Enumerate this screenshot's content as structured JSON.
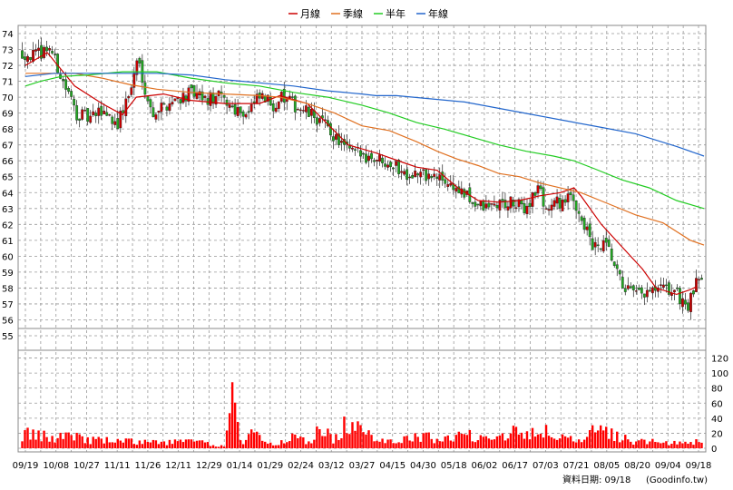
{
  "chart_data": {
    "type": "candlestick",
    "legend": [
      {
        "label": "月線",
        "color": "#cc0000"
      },
      {
        "label": "季線",
        "color": "#e07020"
      },
      {
        "label": "半年",
        "color": "#22cc22"
      },
      {
        "label": "年線",
        "color": "#2266cc"
      }
    ],
    "price_axis": {
      "min": 55,
      "max": 74,
      "ticks": [
        74,
        73,
        72,
        71,
        70,
        69,
        68,
        67,
        66,
        65,
        64,
        63,
        62,
        61,
        60,
        59,
        58,
        57,
        56,
        55
      ]
    },
    "volume_axis": {
      "min": 0,
      "max": 140,
      "ticks": [
        120,
        100,
        80,
        60,
        40,
        20,
        0
      ]
    },
    "x_tick_labels": [
      "09/19",
      "10/08",
      "10/27",
      "11/11",
      "11/26",
      "12/11",
      "12/29",
      "01/14",
      "01/29",
      "02/24",
      "03/12",
      "03/27",
      "04/15",
      "04/30",
      "05/18",
      "06/02",
      "06/17",
      "07/03",
      "07/21",
      "08/05",
      "08/20",
      "09/04",
      "09/18"
    ],
    "up_color": "#cc0000",
    "down_color": "#22aa22",
    "volume_color": "#ff0000",
    "price_anchors": [
      [
        0,
        72.8
      ],
      [
        2,
        72.6
      ],
      [
        4,
        73.2
      ],
      [
        6,
        71.0
      ],
      [
        8,
        69.0
      ],
      [
        10,
        68.6
      ],
      [
        12,
        69.2
      ],
      [
        14,
        68.3
      ],
      [
        16,
        70.5
      ],
      [
        17,
        72.5
      ],
      [
        19,
        69.0
      ],
      [
        21,
        69.5
      ],
      [
        23,
        70.0
      ],
      [
        25,
        70.2
      ],
      [
        27,
        69.8
      ],
      [
        29,
        70.0
      ],
      [
        31,
        69.4
      ],
      [
        33,
        69.0
      ],
      [
        35,
        70.0
      ],
      [
        37,
        69.5
      ],
      [
        38,
        70.0
      ],
      [
        40,
        69.5
      ],
      [
        42,
        69.0
      ],
      [
        44,
        68.5
      ],
      [
        46,
        67.5
      ],
      [
        48,
        66.6
      ],
      [
        50,
        66.4
      ],
      [
        52,
        66.2
      ],
      [
        54,
        66.0
      ],
      [
        56,
        65.3
      ],
      [
        58,
        65.2
      ],
      [
        60,
        65.0
      ],
      [
        62,
        64.8
      ],
      [
        64,
        64.2
      ],
      [
        66,
        63.5
      ],
      [
        68,
        63.0
      ],
      [
        70,
        63.3
      ],
      [
        72,
        63.3
      ],
      [
        74,
        63.0
      ],
      [
        76,
        64.4
      ],
      [
        77,
        63.0
      ],
      [
        79,
        63.4
      ],
      [
        81,
        63.6
      ],
      [
        82,
        62.8
      ],
      [
        84,
        60.5
      ],
      [
        86,
        60.6
      ],
      [
        88,
        58.4
      ],
      [
        90,
        57.5
      ],
      [
        92,
        57.6
      ],
      [
        94,
        57.9
      ],
      [
        96,
        57.8
      ],
      [
        98,
        56.8
      ],
      [
        99,
        58.0
      ],
      [
        100,
        58.9
      ]
    ],
    "ma_lines": [
      {
        "name": "月線",
        "points": [
          [
            0.8,
            72.0
          ],
          [
            4,
            72.8
          ],
          [
            8,
            70.7
          ],
          [
            12,
            69.6
          ],
          [
            15,
            68.9
          ],
          [
            17,
            70.0
          ],
          [
            21,
            70.2
          ],
          [
            25,
            69.8
          ],
          [
            30,
            69.6
          ],
          [
            35,
            69.6
          ],
          [
            38,
            70.1
          ],
          [
            42,
            69.6
          ],
          [
            45,
            68.3
          ],
          [
            48,
            67.0
          ],
          [
            52,
            66.5
          ],
          [
            56,
            65.9
          ],
          [
            58,
            65.6
          ],
          [
            61,
            65.4
          ],
          [
            64,
            64.3
          ],
          [
            67,
            63.5
          ],
          [
            70,
            63.4
          ],
          [
            73,
            63.5
          ],
          [
            76,
            63.8
          ],
          [
            79,
            64.0
          ],
          [
            81,
            64.3
          ],
          [
            82,
            63.8
          ],
          [
            85,
            62.0
          ],
          [
            88,
            60.6
          ],
          [
            91,
            59.2
          ],
          [
            93,
            58.0
          ],
          [
            96,
            57.6
          ],
          [
            98,
            57.9
          ],
          [
            99,
            58.1
          ]
        ]
      },
      {
        "name": "季線",
        "points": [
          [
            0.8,
            71.5
          ],
          [
            4,
            71.5
          ],
          [
            8,
            71.5
          ],
          [
            12,
            71.2
          ],
          [
            16,
            70.8
          ],
          [
            20,
            70.5
          ],
          [
            25,
            70.3
          ],
          [
            30,
            70.2
          ],
          [
            35,
            70.1
          ],
          [
            38,
            70.0
          ],
          [
            42,
            69.6
          ],
          [
            46,
            69.0
          ],
          [
            50,
            68.2
          ],
          [
            54,
            67.9
          ],
          [
            58,
            67.2
          ],
          [
            61,
            66.6
          ],
          [
            64,
            66.1
          ],
          [
            67,
            65.7
          ],
          [
            70,
            65.2
          ],
          [
            73,
            65.0
          ],
          [
            76,
            64.6
          ],
          [
            80,
            64.2
          ],
          [
            82,
            64.0
          ],
          [
            86,
            63.3
          ],
          [
            90,
            62.6
          ],
          [
            94,
            62.1
          ],
          [
            98,
            61.0
          ],
          [
            100,
            60.7
          ]
        ]
      },
      {
        "name": "半年",
        "points": [
          [
            0.8,
            70.7
          ],
          [
            3,
            71.0
          ],
          [
            6,
            71.3
          ],
          [
            10,
            71.4
          ],
          [
            15,
            71.6
          ],
          [
            20,
            71.6
          ],
          [
            25,
            71.2
          ],
          [
            30,
            70.9
          ],
          [
            35,
            70.7
          ],
          [
            40,
            70.3
          ],
          [
            45,
            70.0
          ],
          [
            50,
            69.5
          ],
          [
            54,
            69.0
          ],
          [
            58,
            68.4
          ],
          [
            62,
            68.0
          ],
          [
            66,
            67.5
          ],
          [
            70,
            67.0
          ],
          [
            74,
            66.6
          ],
          [
            78,
            66.3
          ],
          [
            81,
            66.0
          ],
          [
            84,
            65.5
          ],
          [
            88,
            64.8
          ],
          [
            92,
            64.3
          ],
          [
            96,
            63.5
          ],
          [
            100,
            63.0
          ]
        ]
      },
      {
        "name": "年線",
        "points": [
          [
            0.8,
            71.3
          ],
          [
            5,
            71.5
          ],
          [
            10,
            71.5
          ],
          [
            15,
            71.5
          ],
          [
            20,
            71.5
          ],
          [
            25,
            71.4
          ],
          [
            30,
            71.1
          ],
          [
            35,
            70.9
          ],
          [
            40,
            70.7
          ],
          [
            45,
            70.4
          ],
          [
            50,
            70.2
          ],
          [
            52,
            70.1
          ],
          [
            55,
            70.1
          ],
          [
            60,
            69.9
          ],
          [
            65,
            69.7
          ],
          [
            70,
            69.3
          ],
          [
            75,
            68.9
          ],
          [
            80,
            68.5
          ],
          [
            85,
            68.1
          ],
          [
            90,
            67.7
          ],
          [
            93,
            67.3
          ],
          [
            96,
            66.9
          ],
          [
            100,
            66.3
          ]
        ]
      }
    ],
    "volume_anchors": [
      [
        0,
        20
      ],
      [
        5,
        14
      ],
      [
        7,
        25
      ],
      [
        9,
        12
      ],
      [
        20,
        8
      ],
      [
        25,
        10
      ],
      [
        30,
        2
      ],
      [
        31,
        135
      ],
      [
        32,
        8
      ],
      [
        34,
        20
      ],
      [
        36,
        9
      ],
      [
        39,
        7
      ],
      [
        40,
        22
      ],
      [
        42,
        6
      ],
      [
        44,
        28
      ],
      [
        46,
        12
      ],
      [
        48,
        38
      ],
      [
        50,
        20
      ],
      [
        55,
        10
      ],
      [
        58,
        16
      ],
      [
        62,
        14
      ],
      [
        66,
        18
      ],
      [
        70,
        18
      ],
      [
        74,
        26
      ],
      [
        76,
        22
      ],
      [
        78,
        22
      ],
      [
        80,
        14
      ],
      [
        82,
        8
      ],
      [
        84,
        22
      ],
      [
        86,
        22
      ],
      [
        88,
        16
      ],
      [
        90,
        10
      ],
      [
        94,
        8
      ],
      [
        98,
        6
      ],
      [
        100,
        14
      ]
    ],
    "source_label": "資料日期: 09/18",
    "source_site": "(Goodinfo.tw)"
  }
}
